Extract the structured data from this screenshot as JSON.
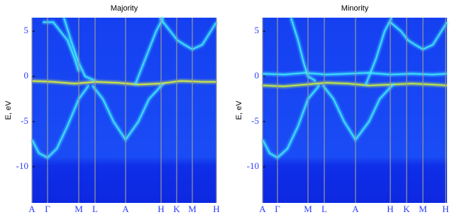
{
  "chart_data": [
    {
      "type": "line",
      "title": "Majority",
      "ylabel": "E, eV",
      "xlim": [
        0,
        260
      ],
      "ylim": [
        -14,
        6.5
      ],
      "yticks": [
        -10,
        -5,
        0,
        5
      ],
      "xticks": [
        {
          "value": 0,
          "label": "A"
        },
        {
          "value": 22,
          "label": "Γ"
        },
        {
          "value": 66,
          "label": "M"
        },
        {
          "value": 89,
          "label": "L"
        },
        {
          "value": 132,
          "label": "A"
        },
        {
          "value": 182,
          "label": "H"
        },
        {
          "value": 204,
          "label": "K"
        },
        {
          "value": 226,
          "label": "M"
        },
        {
          "value": 260,
          "label": "H"
        }
      ],
      "series": [
        {
          "color": "#d8f040",
          "x": [
            0,
            30,
            60,
            90,
            120,
            150,
            180,
            210,
            240,
            260
          ],
          "values": [
            -0.5,
            -0.6,
            -0.8,
            -0.6,
            -0.7,
            -0.9,
            -0.8,
            -0.5,
            -0.6,
            -0.6
          ]
        },
        {
          "color": "#40e8ff",
          "x": [
            0,
            10,
            22,
            35,
            50,
            66,
            80
          ],
          "values": [
            -7,
            -8.5,
            -9,
            -8,
            -5.5,
            -2.5,
            -1
          ]
        },
        {
          "color": "#40e8ff",
          "x": [
            85,
            100,
            115,
            132,
            150,
            165,
            185
          ],
          "values": [
            -1,
            -2.5,
            -5,
            -7,
            -5,
            -2.5,
            -0.8
          ]
        },
        {
          "color": "#40e8ff",
          "x": [
            15,
            30,
            50,
            60,
            66
          ],
          "values": [
            6,
            6,
            4,
            2,
            0.5
          ]
        },
        {
          "color": "#40e8ff",
          "x": [
            45,
            55,
            66,
            75,
            90
          ],
          "values": [
            6.5,
            4,
            1.5,
            0,
            -0.5
          ]
        },
        {
          "color": "#40e8ff",
          "x": [
            145,
            160,
            175,
            185
          ],
          "values": [
            -1,
            2,
            5,
            6.5
          ]
        },
        {
          "color": "#40e8ff",
          "x": [
            180,
            195,
            205,
            215,
            226,
            240,
            260
          ],
          "values": [
            6.5,
            5,
            4,
            3.5,
            3,
            3.5,
            6
          ]
        }
      ]
    },
    {
      "type": "line",
      "title": "Minority",
      "ylabel": "E, eV",
      "xlim": [
        0,
        260
      ],
      "ylim": [
        -14,
        6.5
      ],
      "yticks": [
        -10,
        -5,
        0,
        5
      ],
      "xticks": [
        {
          "value": 0,
          "label": "A"
        },
        {
          "value": 21,
          "label": "Γ"
        },
        {
          "value": 64,
          "label": "M"
        },
        {
          "value": 87,
          "label": "L"
        },
        {
          "value": 131,
          "label": "A"
        },
        {
          "value": 180,
          "label": "H"
        },
        {
          "value": 203,
          "label": "K"
        },
        {
          "value": 226,
          "label": "M"
        },
        {
          "value": 258,
          "label": "H"
        }
      ],
      "series": [
        {
          "color": "#c8f040",
          "x": [
            0,
            30,
            60,
            90,
            120,
            150,
            180,
            210,
            240,
            260
          ],
          "values": [
            -1,
            -1.1,
            -0.9,
            -0.7,
            -0.8,
            -1,
            -0.9,
            -0.8,
            -0.9,
            -1
          ]
        },
        {
          "color": "#40e8ff",
          "x": [
            0,
            30,
            60,
            90,
            120,
            150,
            180,
            210,
            240,
            260
          ],
          "values": [
            0.3,
            0.2,
            0.4,
            0.2,
            0.3,
            0.4,
            0.2,
            0.3,
            0.2,
            0.3
          ]
        },
        {
          "color": "#40e8ff",
          "x": [
            0,
            10,
            21,
            35,
            50,
            64,
            80
          ],
          "values": [
            -7,
            -8.5,
            -9,
            -8,
            -5.5,
            -2.5,
            -1
          ]
        },
        {
          "color": "#40e8ff",
          "x": [
            85,
            100,
            115,
            131,
            150,
            165,
            185
          ],
          "values": [
            -1,
            -2.5,
            -5,
            -7,
            -5,
            -2.5,
            -0.8
          ]
        },
        {
          "color": "#40e8ff",
          "x": [
            40,
            50,
            58,
            64,
            75
          ],
          "values": [
            6.5,
            4,
            1.5,
            0,
            -0.5
          ]
        },
        {
          "color": "#40e8ff",
          "x": [
            145,
            160,
            172,
            182
          ],
          "values": [
            -1,
            2,
            5,
            6.5
          ]
        },
        {
          "color": "#40e8ff",
          "x": [
            180,
            195,
            205,
            215,
            226,
            240,
            260
          ],
          "values": [
            6,
            5,
            4,
            3.5,
            3,
            3.5,
            6
          ]
        }
      ]
    }
  ]
}
